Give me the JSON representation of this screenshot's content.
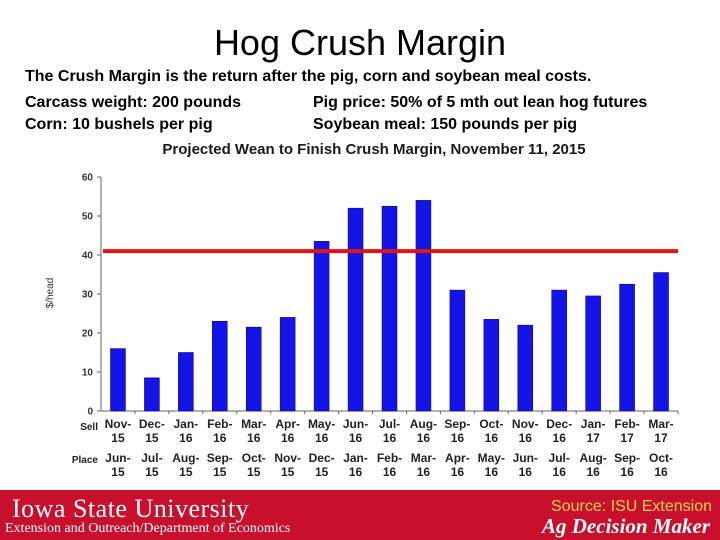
{
  "slide": {
    "title": "Hog Crush Margin",
    "description": "The Crush Margin is the return after the pig, corn and soybean meal costs.",
    "carcass": "Carcass weight:  200 pounds",
    "pig_price": "Pig price:  50% of 5 mth out lean hog futures",
    "corn": "Corn:  10 bushels per pig",
    "soymeal": "Soybean meal:  150 pounds per pig"
  },
  "footer": {
    "logo": "Iowa State University",
    "subtitle": "Extension and Outreach/Department of Economics",
    "source": "Source: ISU Extension",
    "brand": "Ag Decision Maker"
  },
  "chart_data": {
    "type": "bar",
    "title": "Projected Wean to Finish Crush Margin, November 11, 2015",
    "ylabel": "$/head",
    "ylim": [
      0,
      60
    ],
    "yticks": [
      0,
      10,
      20,
      30,
      40,
      50,
      60
    ],
    "row_labels": [
      "Sell",
      "Place"
    ],
    "sell": [
      "Nov-15",
      "Dec-15",
      "Jan-16",
      "Feb-16",
      "Mar-16",
      "Apr-16",
      "May-16",
      "Jun-16",
      "Jul-16",
      "Aug-16",
      "Sep-16",
      "Oct-16",
      "Nov-16",
      "Dec-16",
      "Jan-17",
      "Feb-17",
      "Mar-17"
    ],
    "place": [
      "Jun-15",
      "Jul-15",
      "Aug-15",
      "Sep-15",
      "Oct-15",
      "Nov-15",
      "Dec-15",
      "Jan-16",
      "Feb-16",
      "Mar-16",
      "Apr-16",
      "May-16",
      "Jun-16",
      "Jul-16",
      "Aug-16",
      "Sep-16",
      "Oct-16"
    ],
    "values": [
      16,
      8.5,
      15,
      23,
      21.5,
      24,
      43.5,
      52,
      52.5,
      54,
      31,
      23.5,
      22,
      31,
      29.5,
      32.5,
      35.5
    ],
    "reference_line": 41,
    "colors": {
      "bar": "#1414e6",
      "line": "#e01414"
    },
    "grid": false
  }
}
